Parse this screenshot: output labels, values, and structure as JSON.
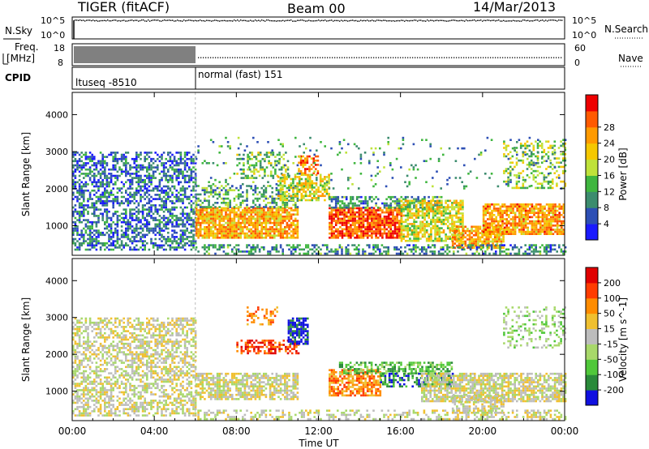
{
  "header": {
    "title": "TIGER (fitACF)",
    "beam": "Beam 00",
    "date": "14/Mar/2013"
  },
  "strip_nsky": {
    "label": "N.Sky",
    "ticks_left": [
      "10^5",
      "10^0"
    ],
    "ticks_right": [
      "10^5",
      "10^0"
    ],
    "right_label": "N.Search"
  },
  "strip_freq": {
    "label_line1": "Freq.",
    "label_line2": "[MHz]",
    "ticks_left": [
      "18",
      "8"
    ],
    "ticks_right": [
      "60",
      "0"
    ],
    "right_label": "Nave"
  },
  "strip_cpid": {
    "label": "CPID",
    "segments": [
      {
        "text": "ltuseq -8510",
        "start_hour": 0,
        "end_hour": 6
      },
      {
        "text": "normal (fast) 151",
        "start_hour": 6,
        "end_hour": 24
      }
    ]
  },
  "chart_data": [
    {
      "type": "heatmap",
      "name": "Power",
      "ylabel": "Slant Range [km]",
      "ylim": [
        200,
        4600
      ],
      "yticks": [
        1000,
        2000,
        3000,
        4000
      ],
      "xlim": [
        0,
        24
      ],
      "colorbar": {
        "label": "Power [dB]",
        "ticks": [
          "4",
          "8",
          "12",
          "16",
          "20",
          "24",
          "28"
        ],
        "range": [
          0,
          32
        ],
        "colors": [
          "#1a1aff",
          "#2d4fb5",
          "#3c8c6e",
          "#3fb63f",
          "#bfe23a",
          "#f5c800",
          "#ff9a00",
          "#ff5a00",
          "#ee0000"
        ]
      },
      "regions": [
        {
          "t0": 0,
          "t1": 6,
          "r0": 350,
          "r1": 3000,
          "v": 7,
          "d": 0.55
        },
        {
          "t0": 6,
          "t1": 11,
          "r0": 700,
          "r1": 1500,
          "v": 22,
          "d": 0.85
        },
        {
          "t0": 6,
          "t1": 11,
          "r0": 1500,
          "r1": 2100,
          "v": 11,
          "d": 0.45
        },
        {
          "t0": 8,
          "t1": 10.5,
          "r0": 2300,
          "r1": 3000,
          "v": 14,
          "d": 0.35
        },
        {
          "t0": 10,
          "t1": 12.5,
          "r0": 1700,
          "r1": 2400,
          "v": 18,
          "d": 0.6
        },
        {
          "t0": 11,
          "t1": 12,
          "r0": 2400,
          "r1": 2900,
          "v": 25,
          "d": 0.5
        },
        {
          "t0": 12.5,
          "t1": 16,
          "r0": 700,
          "r1": 1500,
          "v": 27,
          "d": 0.85
        },
        {
          "t0": 12.5,
          "t1": 18,
          "r0": 1500,
          "r1": 1800,
          "v": 9,
          "d": 0.55
        },
        {
          "t0": 16,
          "t1": 19,
          "r0": 600,
          "r1": 1700,
          "v": 18,
          "d": 0.7
        },
        {
          "t0": 18.5,
          "t1": 21,
          "r0": 400,
          "r1": 1000,
          "v": 22,
          "d": 0.75
        },
        {
          "t0": 20,
          "t1": 24,
          "r0": 800,
          "r1": 1600,
          "v": 23,
          "d": 0.8
        },
        {
          "t0": 21,
          "t1": 24,
          "r0": 2000,
          "r1": 3300,
          "v": 15,
          "d": 0.35
        },
        {
          "t0": 6,
          "t1": 24,
          "r0": 2000,
          "r1": 3400,
          "v": 10,
          "d": 0.06
        },
        {
          "t0": 6,
          "t1": 24,
          "r0": 250,
          "r1": 500,
          "v": 9,
          "d": 0.45
        }
      ]
    },
    {
      "type": "heatmap",
      "name": "Velocity",
      "ylabel": "Slant Range [km]",
      "ylim": [
        200,
        4600
      ],
      "yticks": [
        1000,
        2000,
        3000,
        4000
      ],
      "xlim": [
        0,
        24
      ],
      "xticks": [
        "00:00",
        "04:00",
        "08:00",
        "12:00",
        "16:00",
        "20:00",
        "00:00"
      ],
      "xlabel": "Time UT",
      "colorbar": {
        "label": "Velocity [m s^-1]",
        "ticks": [
          "200",
          "100",
          "50",
          "15",
          "-15",
          "-50",
          "-100",
          "-200"
        ],
        "colors": [
          "#1010e0",
          "#2a8a3a",
          "#50c83a",
          "#a8d86a",
          "#bdbdbd",
          "#f0c030",
          "#ff8c00",
          "#ff3c00",
          "#e00000"
        ]
      },
      "regions": [
        {
          "t0": 0,
          "t1": 6,
          "r0": 350,
          "r1": 3000,
          "v": 4,
          "d": 0.55
        },
        {
          "t0": 6,
          "t1": 11,
          "r0": 800,
          "r1": 1500,
          "v": 4,
          "d": 0.7
        },
        {
          "t0": 8,
          "t1": 11,
          "r0": 2000,
          "r1": 2400,
          "v": 7,
          "d": 0.55
        },
        {
          "t0": 10.5,
          "t1": 11.5,
          "r0": 2300,
          "r1": 3000,
          "v": 0,
          "d": 0.75
        },
        {
          "t0": 12.5,
          "t1": 15,
          "r0": 900,
          "r1": 1600,
          "v": 6,
          "d": 0.75
        },
        {
          "t0": 13,
          "t1": 18.5,
          "r0": 1500,
          "r1": 1800,
          "v": 2,
          "d": 0.6
        },
        {
          "t0": 15,
          "t1": 18.5,
          "r0": 1100,
          "r1": 1500,
          "v": 1,
          "d": 0.6
        },
        {
          "t0": 17,
          "t1": 24,
          "r0": 700,
          "r1": 1500,
          "v": 4,
          "d": 0.75
        },
        {
          "t0": 18.5,
          "t1": 21,
          "r0": 400,
          "r1": 900,
          "v": 4,
          "d": 0.7
        },
        {
          "t0": 21,
          "t1": 24,
          "r0": 2200,
          "r1": 3300,
          "v": 3,
          "d": 0.3
        },
        {
          "t0": 8.5,
          "t1": 10,
          "r0": 2800,
          "r1": 3300,
          "v": 6,
          "d": 0.3
        },
        {
          "t0": 6,
          "t1": 24,
          "r0": 250,
          "r1": 500,
          "v": 4,
          "d": 0.4
        }
      ]
    }
  ]
}
